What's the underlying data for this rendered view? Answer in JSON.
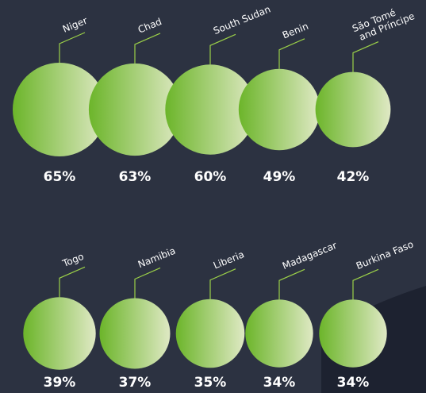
{
  "colors": {
    "background": "#2c3241",
    "accent_shape": "#1d2230",
    "bubble_from": "#6cb52a",
    "bubble_to": "#dfe9c4",
    "leader": "#9bd048",
    "label_text": "#ffffff"
  },
  "chart_data": {
    "type": "bubble",
    "title": "",
    "unit": "%",
    "series": [
      {
        "items": [
          {
            "country": "Niger",
            "value": 65,
            "value_label": "65%"
          },
          {
            "country": "Chad",
            "value": 63,
            "value_label": "63%"
          },
          {
            "country": "South Sudan",
            "value": 60,
            "value_label": "60%"
          },
          {
            "country": "Benin",
            "value": 49,
            "value_label": "49%"
          },
          {
            "country": "São Tomé and Príncipe",
            "label_lines": [
              "São Tomé",
              "and Príncipe"
            ],
            "value": 42,
            "value_label": "42%"
          }
        ]
      },
      {
        "items": [
          {
            "country": "Togo",
            "value": 39,
            "value_label": "39%"
          },
          {
            "country": "Namibia",
            "value": 37,
            "value_label": "37%"
          },
          {
            "country": "Liberia",
            "value": 35,
            "value_label": "35%"
          },
          {
            "country": "Madagascar",
            "value": 34,
            "value_label": "34%"
          },
          {
            "country": "Burkina Faso",
            "value": 34,
            "value_label": "34%"
          }
        ]
      }
    ]
  }
}
